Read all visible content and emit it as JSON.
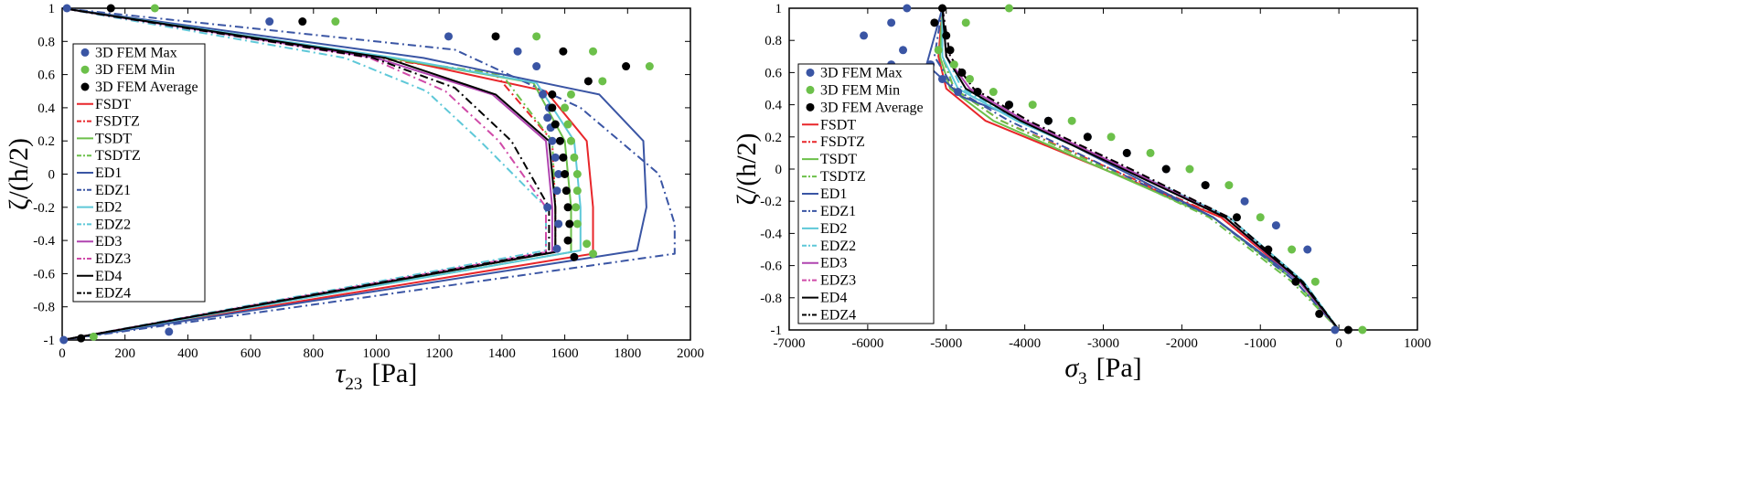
{
  "colors": {
    "fem_max": "#3a55a4",
    "fem_min": "#6cc04a",
    "fem_avg": "#000000",
    "FSDT": "#e8262a",
    "TSDT": "#6cc04a",
    "ED1": "#3a55a4",
    "ED2": "#5ec8d8",
    "ED3": "#b044b0",
    "EDZ3": "#d04aa8",
    "ED4": "#000000"
  },
  "chart_data": [
    {
      "type": "line",
      "xlabel_main": "τ",
      "xlabel_sub": "23",
      "xlabel_unit": "[Pa]",
      "ylabel": "ζ/(h/2)",
      "xlim": [
        0,
        2000
      ],
      "ylim": [
        -1,
        1
      ],
      "xticks": [
        "0",
        "200",
        "400",
        "600",
        "800",
        "1000",
        "1200",
        "1400",
        "1600",
        "1800",
        "2000"
      ],
      "yticks": [
        "1",
        "0.8",
        "0.6",
        "0.4",
        "0.2",
        "0",
        "-0.2",
        "-0.4",
        "-0.6",
        "-0.8",
        "-1"
      ],
      "legend_position": "left",
      "legend": [
        "3D FEM Max",
        "3D FEM Min",
        "3D FEM Average",
        "FSDT",
        "FSDTZ",
        "TSDT",
        "TSDTZ",
        "ED1",
        "EDZ1",
        "ED2",
        "EDZ2",
        "ED3",
        "EDZ3",
        "ED4",
        "EDZ4"
      ],
      "points": [
        {
          "name": "3D FEM Max",
          "color": "#3a55a4",
          "x": [
            15,
            660,
            1230,
            1450,
            1510,
            1530,
            1550,
            1545,
            1555,
            1560,
            1570,
            1580,
            1575,
            1545,
            1580,
            1575,
            340,
            5
          ],
          "y": [
            1,
            0.92,
            0.83,
            0.74,
            0.65,
            0.48,
            0.4,
            0.34,
            0.28,
            0.2,
            0.1,
            0,
            -0.1,
            -0.2,
            -0.3,
            -0.45,
            -0.95,
            -1
          ]
        },
        {
          "name": "3D FEM Min",
          "color": "#6cc04a",
          "x": [
            295,
            870,
            1510,
            1690,
            1870,
            1720,
            1620,
            1600,
            1610,
            1620,
            1630,
            1640,
            1640,
            1635,
            1640,
            1670,
            1690,
            100
          ],
          "y": [
            1,
            0.92,
            0.83,
            0.74,
            0.65,
            0.56,
            0.48,
            0.4,
            0.3,
            0.2,
            0.1,
            0,
            -0.1,
            -0.2,
            -0.3,
            -0.42,
            -0.48,
            -0.98
          ]
        },
        {
          "name": "3D FEM Average",
          "color": "#000000",
          "x": [
            155,
            765,
            1380,
            1595,
            1795,
            1675,
            1560,
            1560,
            1570,
            1585,
            1595,
            1600,
            1605,
            1610,
            1615,
            1610,
            1630,
            60
          ],
          "y": [
            1,
            0.92,
            0.83,
            0.74,
            0.65,
            0.56,
            0.48,
            0.4,
            0.3,
            0.2,
            0.1,
            0,
            -0.1,
            -0.2,
            -0.3,
            -0.4,
            -0.5,
            -0.99
          ]
        }
      ],
      "series": [
        {
          "name": "FSDT",
          "color": "#e8262a",
          "dash": "solid",
          "x": [
            0,
            1050,
            1540,
            1670,
            1690,
            1690,
            0
          ],
          "y": [
            1,
            0.7,
            0.5,
            0.2,
            -0.2,
            -0.48,
            -1
          ]
        },
        {
          "name": "FSDTZ",
          "color": "#e8262a",
          "dash": "dashdot",
          "x": [
            0,
            1000,
            1380,
            1560,
            1570,
            1570,
            0
          ],
          "y": [
            1,
            0.7,
            0.6,
            0.2,
            -0.2,
            -0.47,
            -1
          ]
        },
        {
          "name": "TSDT",
          "color": "#6cc04a",
          "dash": "solid",
          "x": [
            0,
            1050,
            1500,
            1600,
            1620,
            1620,
            0
          ],
          "y": [
            1,
            0.7,
            0.55,
            0.2,
            -0.2,
            -0.47,
            -1
          ]
        },
        {
          "name": "TSDTZ",
          "color": "#6cc04a",
          "dash": "dashdot",
          "x": [
            0,
            1020,
            1400,
            1560,
            1570,
            1570,
            0
          ],
          "y": [
            1,
            0.7,
            0.6,
            0.2,
            -0.2,
            -0.47,
            -1
          ]
        },
        {
          "name": "ED1",
          "color": "#3a55a4",
          "dash": "solid",
          "x": [
            0,
            1150,
            1710,
            1850,
            1860,
            1830,
            0
          ],
          "y": [
            1,
            0.7,
            0.48,
            0.2,
            -0.2,
            -0.46,
            -1
          ]
        },
        {
          "name": "EDZ1",
          "color": "#3a55a4",
          "dash": "dashdot",
          "x": [
            0,
            1250,
            1650,
            1900,
            1950,
            1950,
            0
          ],
          "y": [
            1,
            0.75,
            0.4,
            0.0,
            -0.3,
            -0.48,
            -1
          ]
        },
        {
          "name": "ED2",
          "color": "#5ec8d8",
          "dash": "solid",
          "x": [
            0,
            1060,
            1510,
            1630,
            1650,
            1650,
            0
          ],
          "y": [
            1,
            0.7,
            0.55,
            0.2,
            -0.2,
            -0.46,
            -1
          ]
        },
        {
          "name": "EDZ2",
          "color": "#5ec8d8",
          "dash": "dashdot",
          "x": [
            0,
            900,
            1160,
            1330,
            1540,
            1540,
            0
          ],
          "y": [
            1,
            0.7,
            0.5,
            0.2,
            -0.2,
            -0.46,
            -1
          ]
        },
        {
          "name": "ED3",
          "color": "#b044b0",
          "dash": "solid",
          "x": [
            0,
            1000,
            1370,
            1540,
            1560,
            1560,
            0
          ],
          "y": [
            1,
            0.7,
            0.48,
            0.2,
            -0.2,
            -0.47,
            -1
          ]
        },
        {
          "name": "EDZ3",
          "color": "#d04aa8",
          "dash": "dashdot",
          "x": [
            0,
            980,
            1220,
            1390,
            1540,
            1540,
            0
          ],
          "y": [
            1,
            0.7,
            0.5,
            0.2,
            -0.2,
            -0.47,
            -1
          ]
        },
        {
          "name": "ED4",
          "color": "#000000",
          "dash": "solid",
          "x": [
            0,
            1030,
            1380,
            1550,
            1570,
            1570,
            0
          ],
          "y": [
            1,
            0.7,
            0.48,
            0.2,
            -0.2,
            -0.47,
            -1
          ]
        },
        {
          "name": "EDZ4",
          "color": "#000000",
          "dash": "dashdot",
          "x": [
            0,
            990,
            1250,
            1430,
            1550,
            1550,
            0
          ],
          "y": [
            1,
            0.7,
            0.52,
            0.2,
            -0.2,
            -0.47,
            -1
          ]
        }
      ]
    },
    {
      "type": "line",
      "xlabel_main": "σ",
      "xlabel_sub": "3",
      "xlabel_unit": "[Pa]",
      "ylabel": "ζ/(h/2)",
      "xlim": [
        -7000,
        1000
      ],
      "ylim": [
        -1,
        1
      ],
      "xticks": [
        "-7000",
        "-6000",
        "-5000",
        "-4000",
        "-3000",
        "-2000",
        "-1000",
        "0",
        "1000"
      ],
      "yticks": [
        "1",
        "0.8",
        "0.6",
        "0.4",
        "0.2",
        "0",
        "-0.2",
        "-0.4",
        "-0.6",
        "-0.8",
        "-1"
      ],
      "legend_position": "left",
      "legend": [
        "3D FEM Max",
        "3D FEM Min",
        "3D FEM Average",
        "FSDT",
        "FSDTZ",
        "TSDT",
        "TSDTZ",
        "ED1",
        "EDZ1",
        "ED2",
        "EDZ2",
        "ED3",
        "EDZ3",
        "ED4",
        "EDZ4"
      ],
      "points": [
        {
          "name": "3D FEM Max",
          "color": "#3a55a4",
          "x": [
            -5500,
            -5700,
            -6050,
            -5550,
            -5700,
            -5200,
            -5050,
            -4850,
            -4200,
            -3700,
            -3200,
            -2700,
            -2200,
            -1700,
            -1200,
            -800,
            -400,
            -50
          ],
          "y": [
            1,
            0.91,
            0.83,
            0.74,
            0.65,
            0.65,
            0.56,
            0.48,
            0.4,
            0.3,
            0.2,
            0.1,
            0,
            -0.1,
            -0.2,
            -0.35,
            -0.5,
            -1
          ]
        },
        {
          "name": "3D FEM Min",
          "color": "#6cc04a",
          "x": [
            -4200,
            -4750,
            -5100,
            -4900,
            -4700,
            -4400,
            -3900,
            -3400,
            -2900,
            -2400,
            -1900,
            -1400,
            -1000,
            -600,
            -300,
            300
          ],
          "y": [
            1,
            0.91,
            0.74,
            0.65,
            0.56,
            0.48,
            0.4,
            0.3,
            0.2,
            0.1,
            0,
            -0.1,
            -0.3,
            -0.5,
            -0.7,
            -1
          ]
        },
        {
          "name": "3D FEM Average",
          "color": "#000000",
          "x": [
            -5050,
            -5150,
            -5000,
            -4950,
            -4800,
            -4600,
            -4200,
            -3700,
            -3200,
            -2700,
            -2200,
            -1700,
            -1300,
            -900,
            -550,
            -250,
            120
          ],
          "y": [
            1,
            0.91,
            0.83,
            0.74,
            0.6,
            0.48,
            0.4,
            0.3,
            0.2,
            0.1,
            0,
            -0.1,
            -0.3,
            -0.5,
            -0.7,
            -0.9,
            -1
          ]
        }
      ],
      "series": [
        {
          "name": "FSDT",
          "color": "#e8262a",
          "dash": "solid",
          "x": [
            -5050,
            -5100,
            -5000,
            -4500,
            -3000,
            -1500,
            -500,
            0
          ],
          "y": [
            1,
            0.7,
            0.5,
            0.3,
            0.0,
            -0.3,
            -0.7,
            -1
          ]
        },
        {
          "name": "FSDTZ",
          "color": "#e8262a",
          "dash": "dashdot",
          "x": [
            -5050,
            -5050,
            -4900,
            -4300,
            -2900,
            -1500,
            -500,
            0
          ],
          "y": [
            1,
            0.7,
            0.5,
            0.3,
            0.0,
            -0.3,
            -0.7,
            -1
          ]
        },
        {
          "name": "TSDT",
          "color": "#6cc04a",
          "dash": "solid",
          "x": [
            -5050,
            -5080,
            -4950,
            -4400,
            -3000,
            -1600,
            -550,
            0
          ],
          "y": [
            1,
            0.7,
            0.5,
            0.3,
            0.0,
            -0.3,
            -0.7,
            -1
          ]
        },
        {
          "name": "TSDTZ",
          "color": "#6cc04a",
          "dash": "dashdot",
          "x": [
            -5050,
            -5050,
            -4900,
            -4300,
            -2950,
            -1650,
            -600,
            0
          ],
          "y": [
            1,
            0.7,
            0.5,
            0.3,
            0.0,
            -0.3,
            -0.7,
            -1
          ]
        },
        {
          "name": "ED1",
          "color": "#3a55a4",
          "dash": "solid",
          "x": [
            -5050,
            -5250,
            -4800,
            -4000,
            -2800,
            -1600,
            -500,
            0
          ],
          "y": [
            1,
            0.65,
            0.45,
            0.3,
            0.0,
            -0.3,
            -0.7,
            -1
          ]
        },
        {
          "name": "EDZ1",
          "color": "#3a55a4",
          "dash": "dashdot",
          "x": [
            -5050,
            -5150,
            -4900,
            -4200,
            -2900,
            -1600,
            -550,
            0
          ],
          "y": [
            1,
            0.7,
            0.5,
            0.3,
            0.0,
            -0.3,
            -0.7,
            -1
          ]
        },
        {
          "name": "ED2",
          "color": "#5ec8d8",
          "dash": "solid",
          "x": [
            -5050,
            -5050,
            -4850,
            -4100,
            -2700,
            -1400,
            -450,
            0
          ],
          "y": [
            1,
            0.7,
            0.5,
            0.3,
            0.0,
            -0.3,
            -0.7,
            -1
          ]
        },
        {
          "name": "EDZ2",
          "color": "#5ec8d8",
          "dash": "dashdot",
          "x": [
            -5050,
            -5000,
            -4800,
            -4050,
            -2750,
            -1450,
            -500,
            0
          ],
          "y": [
            1,
            0.7,
            0.5,
            0.3,
            0.0,
            -0.3,
            -0.7,
            -1
          ]
        },
        {
          "name": "ED3",
          "color": "#b044b0",
          "dash": "solid",
          "x": [
            -5050,
            -5000,
            -4700,
            -4000,
            -2700,
            -1450,
            -500,
            0
          ],
          "y": [
            1,
            0.7,
            0.5,
            0.3,
            0.0,
            -0.3,
            -0.7,
            -1
          ]
        },
        {
          "name": "EDZ3",
          "color": "#d04aa8",
          "dash": "dashdot",
          "x": [
            -5050,
            -4950,
            -4650,
            -3950,
            -2650,
            -1400,
            -480,
            0
          ],
          "y": [
            1,
            0.7,
            0.5,
            0.3,
            0.0,
            -0.3,
            -0.7,
            -1
          ]
        },
        {
          "name": "ED4",
          "color": "#000000",
          "dash": "solid",
          "x": [
            -5050,
            -5000,
            -4750,
            -4050,
            -2750,
            -1450,
            -480,
            0
          ],
          "y": [
            1,
            0.7,
            0.5,
            0.3,
            0.0,
            -0.3,
            -0.7,
            -1
          ]
        },
        {
          "name": "EDZ4",
          "color": "#000000",
          "dash": "dashdot",
          "x": [
            -5050,
            -4950,
            -4650,
            -3950,
            -2650,
            -1400,
            -460,
            0
          ],
          "y": [
            1,
            0.7,
            0.5,
            0.3,
            0.0,
            -0.3,
            -0.7,
            -1
          ]
        }
      ]
    }
  ]
}
